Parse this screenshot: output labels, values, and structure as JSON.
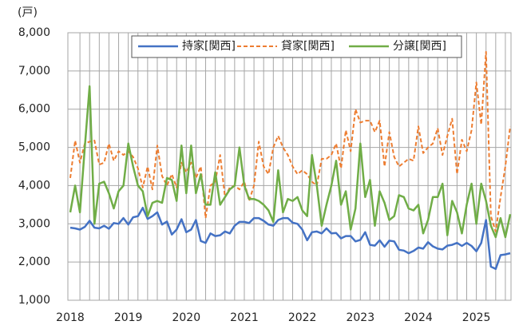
{
  "chart_data": {
    "type": "line",
    "unit_label": "(戸)",
    "categories": [
      "2018",
      null,
      null,
      null,
      null,
      null,
      null,
      null,
      null,
      null,
      null,
      null,
      "2019",
      null,
      null,
      null,
      null,
      null,
      null,
      null,
      null,
      null,
      null,
      null,
      "2020",
      null,
      null,
      null,
      null,
      null,
      null,
      null,
      null,
      null,
      null,
      null,
      "2021",
      null,
      null,
      null,
      null,
      null,
      null,
      null,
      null,
      null,
      null,
      null,
      "2022",
      null,
      null,
      null,
      null,
      null,
      null,
      null,
      null,
      null,
      null,
      null,
      "2023",
      null,
      null,
      null,
      null,
      null,
      null,
      null,
      null,
      null,
      null,
      null,
      "2024",
      null,
      null,
      null,
      null,
      null,
      null,
      null,
      null,
      null,
      null,
      null,
      "2025",
      null,
      null,
      null,
      null,
      null,
      null,
      null
    ],
    "series": [
      {
        "name": "持家[関西]",
        "color": "#4472c4",
        "style": "solid",
        "values": [
          2900,
          2880,
          2850,
          2920,
          3080,
          2900,
          2880,
          2950,
          2870,
          3020,
          3000,
          3150,
          2980,
          3170,
          3200,
          3420,
          3130,
          3200,
          3300,
          2980,
          3060,
          2720,
          2850,
          3120,
          2780,
          2850,
          3100,
          2550,
          2500,
          2750,
          2680,
          2700,
          2800,
          2750,
          2950,
          3050,
          3050,
          3020,
          3150,
          3150,
          3080,
          2980,
          2950,
          3100,
          3150,
          3150,
          3030,
          3000,
          2850,
          2570,
          2780,
          2800,
          2750,
          2880,
          2750,
          2760,
          2620,
          2680,
          2680,
          2540,
          2580,
          2780,
          2450,
          2430,
          2570,
          2400,
          2560,
          2540,
          2320,
          2300,
          2230,
          2290,
          2380,
          2350,
          2520,
          2410,
          2350,
          2330,
          2430,
          2450,
          2500,
          2420,
          2500,
          2420,
          2280,
          2500,
          3100,
          1880,
          1820,
          2180,
          2200,
          2230
        ]
      },
      {
        "name": "貸家[関西]",
        "color": "#ed7d31",
        "style": "dashed",
        "values": [
          4200,
          5180,
          4600,
          5100,
          5150,
          5180,
          4550,
          4600,
          5100,
          4650,
          4900,
          4800,
          4900,
          4750,
          4450,
          3950,
          4500,
          3900,
          5050,
          4250,
          4000,
          4300,
          3950,
          4600,
          4350,
          4600,
          4200,
          4500,
          3150,
          4000,
          4100,
          4800,
          3700,
          3950,
          4000,
          3900,
          4100,
          3600,
          4000,
          5150,
          4500,
          4300,
          5000,
          5300,
          5000,
          4800,
          4500,
          4300,
          4400,
          4300,
          4100,
          4000,
          4700,
          4700,
          4800,
          5100,
          4450,
          5450,
          4900,
          6000,
          5650,
          5700,
          5700,
          5400,
          5700,
          4500,
          5400,
          4750,
          4500,
          4600,
          4700,
          4650,
          5550,
          4850,
          5000,
          5100,
          5500,
          4800,
          5300,
          5750,
          4300,
          5200,
          4900,
          5450,
          6700,
          5600,
          7500,
          3200,
          2800,
          3700,
          4500,
          5550
        ]
      },
      {
        "name": "分譲[関西]",
        "color": "#70ad47",
        "style": "solid",
        "values": [
          3300,
          4000,
          3300,
          5000,
          6600,
          3000,
          4050,
          4100,
          3800,
          3400,
          3850,
          4000,
          5100,
          4500,
          4000,
          3850,
          3200,
          3550,
          3600,
          3550,
          4200,
          4150,
          3600,
          5050,
          3800,
          5050,
          3800,
          4300,
          3500,
          3500,
          4350,
          3500,
          3700,
          3900,
          4000,
          5000,
          4000,
          3650,
          3650,
          3600,
          3500,
          3350,
          3050,
          4400,
          3300,
          3650,
          3600,
          3700,
          3350,
          3200,
          4800,
          4000,
          2950,
          3500,
          4000,
          4650,
          3500,
          3850,
          2850,
          3400,
          5100,
          3700,
          4150,
          2950,
          3850,
          3550,
          3100,
          3200,
          3750,
          3700,
          3400,
          3350,
          3500,
          2750,
          3100,
          3700,
          3700,
          4050,
          2700,
          3600,
          3300,
          2750,
          3500,
          4050,
          3000,
          4050,
          3600,
          2950,
          2650,
          3150,
          2650,
          3250
        ]
      }
    ],
    "ylim": [
      1000,
      8000
    ],
    "yticks": [
      {
        "value": 1000,
        "label": "1,000"
      },
      {
        "value": 2000,
        "label": "2,000"
      },
      {
        "value": 3000,
        "label": "3,000"
      },
      {
        "value": 4000,
        "label": "4,000"
      },
      {
        "value": 5000,
        "label": "5,000"
      },
      {
        "value": 6000,
        "label": "6,000"
      },
      {
        "value": 7000,
        "label": "7,000"
      },
      {
        "value": 8000,
        "label": "8,000"
      }
    ],
    "grid": true,
    "legend": "top"
  }
}
